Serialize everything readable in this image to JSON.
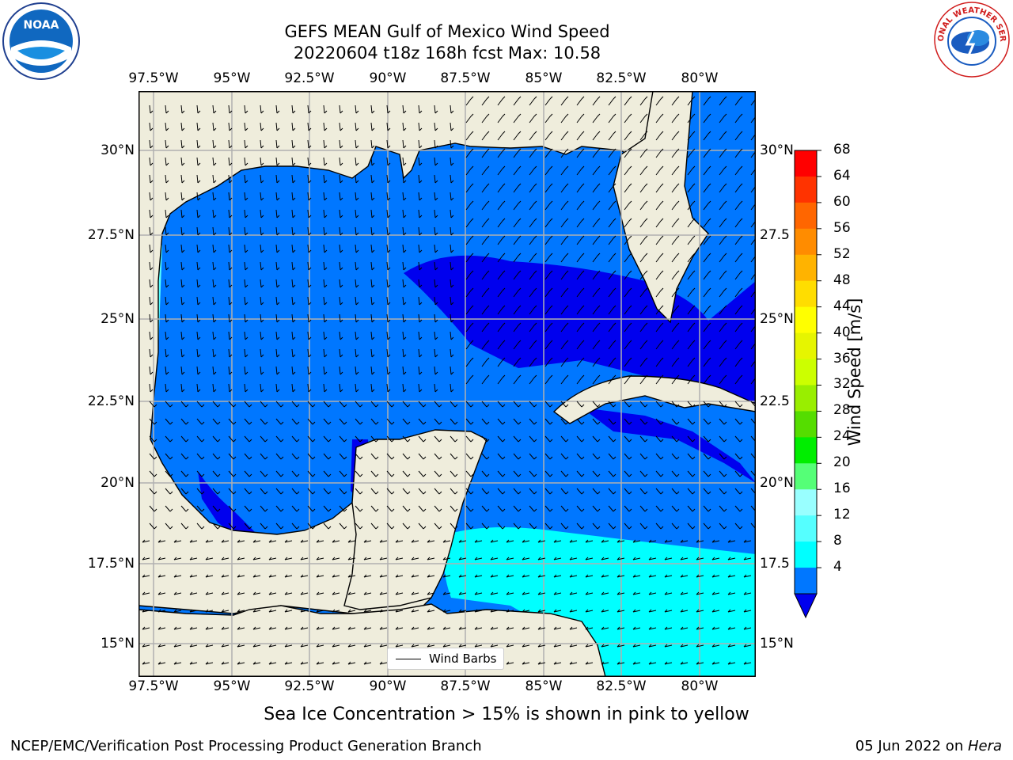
{
  "title": {
    "line1": "GEFS MEAN Gulf of Mexico Wind Speed",
    "line2": "20220604 t18z 168h fcst   Max: 10.58"
  },
  "logos": {
    "left": {
      "text": "NOAA",
      "icon": "noaa-logo-icon"
    },
    "right": {
      "text": "NATIONAL WEATHER SERVICE",
      "icon": "nws-logo-icon"
    }
  },
  "map": {
    "lon_ticks": [
      "97.5°W",
      "95°W",
      "92.5°W",
      "90°W",
      "87.5°W",
      "85°W",
      "82.5°W",
      "80°W"
    ],
    "lat_ticks": [
      "30°N",
      "27.5°N",
      "25°N",
      "22.5°N",
      "20°N",
      "17.5°N",
      "15°N"
    ],
    "lat_ticks_right": [
      "30°N",
      "27.5",
      "25°N",
      "22.5",
      "20°N",
      "17.5",
      "15°N"
    ],
    "legend_label": "Wind Barbs",
    "colors": {
      "land": "#efeddc",
      "grid": "#b0b0b0"
    }
  },
  "colorbar": {
    "title": "Wind Speed [m/s]",
    "levels": [
      "68",
      "64",
      "60",
      "56",
      "52",
      "48",
      "44",
      "40",
      "36",
      "32",
      "28",
      "24",
      "20",
      "16",
      "12",
      "8",
      "4"
    ],
    "colors": [
      "#ff0000",
      "#ff3300",
      "#ff6600",
      "#ff8c00",
      "#ffb300",
      "#ffdd00",
      "#ffff00",
      "#e6f500",
      "#ccff00",
      "#99ee00",
      "#55dd00",
      "#00ee00",
      "#55ff77",
      "#99ffff",
      "#55ffff",
      "#00ffff",
      "#0077ff"
    ],
    "under_color": "#0000ee"
  },
  "caption": "Sea Ice Concentration > 15% is shown in pink to yellow",
  "footer": {
    "left": "NCEP/EMC/Verification Post Processing Product Generation Branch",
    "right_prefix": "05 Jun 2022 on ",
    "right_host": "Hera"
  }
}
